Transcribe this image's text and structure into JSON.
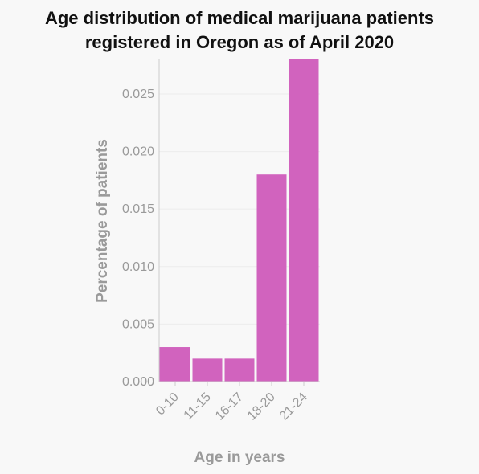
{
  "chart_data": {
    "type": "bar",
    "title_line1": "Age distribution of medical marijuana patients",
    "title_line2": "registered in Oregon as of April 2020",
    "xlabel": "Age in years",
    "ylabel": "Percentage of patients",
    "categories": [
      "0-10",
      "11-15",
      "16-17",
      "18-20",
      "21-24"
    ],
    "values": [
      0.003,
      0.002,
      0.002,
      0.018,
      0.028
    ],
    "ylim": [
      0,
      0.028
    ],
    "yticks": [
      "0.000",
      "0.005",
      "0.010",
      "0.015",
      "0.020",
      "0.025"
    ],
    "bar_color": "#d163be",
    "grid": true
  }
}
